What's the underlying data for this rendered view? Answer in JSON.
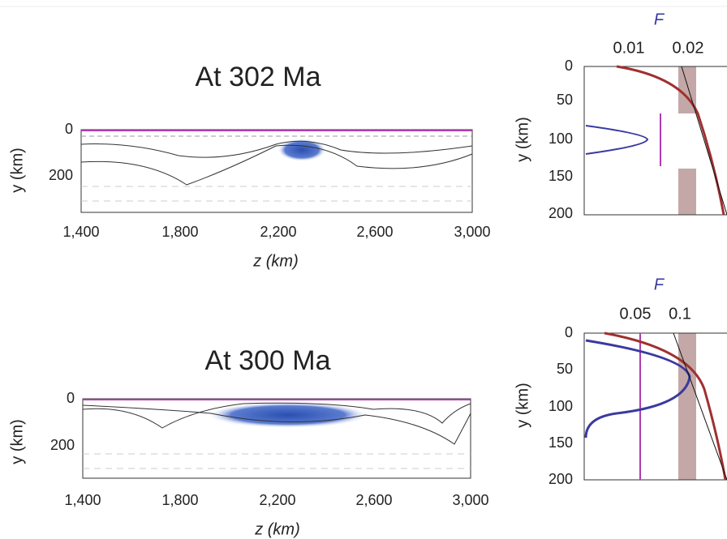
{
  "panels": [
    {
      "title": "At 302 Ma",
      "x_label": "z (km)",
      "y_label": "y (km)",
      "x_ticks": [
        "1,400",
        "1,800",
        "2,200",
        "2,600",
        "3,000"
      ],
      "y_ticks": [
        "0",
        "200"
      ]
    },
    {
      "title": "At 300 Ma",
      "x_label": "z (km)",
      "y_label": "y (km)",
      "x_ticks": [
        "1,400",
        "1,800",
        "2,200",
        "2,600",
        "3,000"
      ],
      "y_ticks": [
        "0",
        "200"
      ]
    }
  ],
  "profiles": [
    {
      "top_label": "F",
      "top_ticks": [
        "0.01",
        "0.02"
      ],
      "y_label": "y (km)",
      "y_ticks": [
        "0",
        "50",
        "100",
        "150",
        "200"
      ]
    },
    {
      "top_label": "F",
      "top_ticks": [
        "0.05",
        "0.1"
      ],
      "y_label": "y (km)",
      "y_ticks": [
        "0",
        "50",
        "100",
        "150",
        "200"
      ]
    }
  ]
}
